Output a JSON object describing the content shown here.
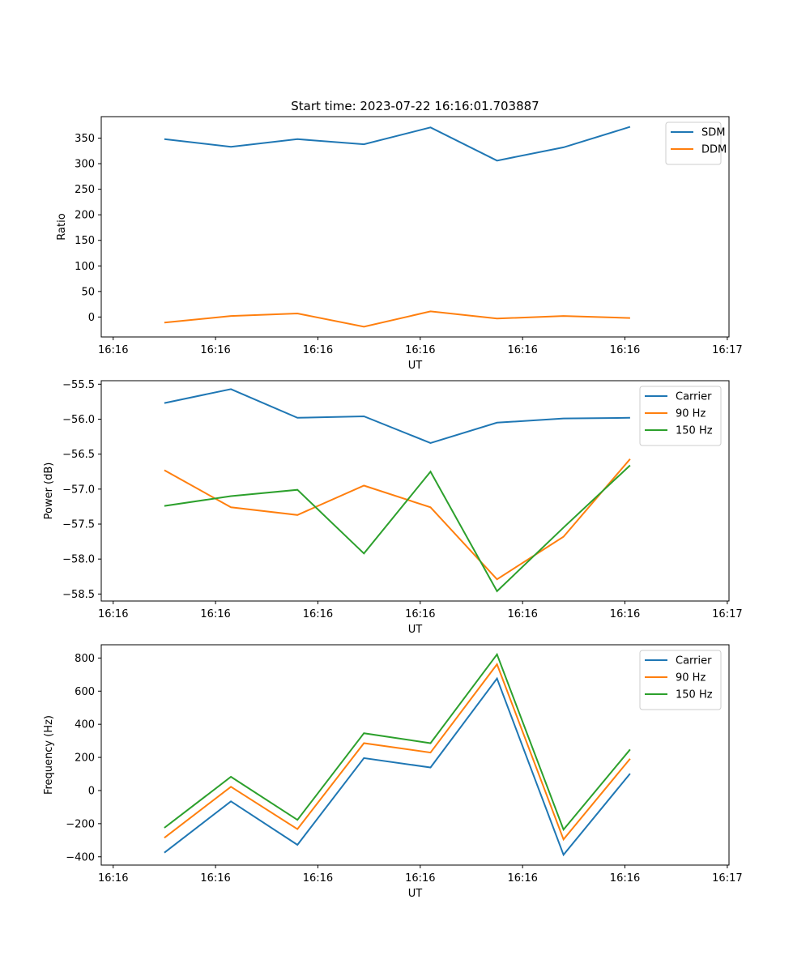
{
  "title": "Start time: 2023-07-22 16:16:01.703887",
  "chart_data": [
    {
      "type": "line",
      "title": "Start time: 2023-07-22 16:16:01.703887",
      "xlabel": "UT",
      "ylabel": "Ratio",
      "x_tick_labels": [
        "16:16",
        "16:16",
        "16:16",
        "16:16",
        "16:16",
        "16:16",
        "16:17"
      ],
      "x_tick_values": [
        0,
        6,
        12,
        18,
        24,
        30,
        36
      ],
      "xlim": [
        -0.7,
        36.1
      ],
      "x": [
        3,
        6.9,
        10.8,
        14.7,
        18.6,
        22.5,
        26.4,
        30.3
      ],
      "y_ticks": [
        0,
        50,
        100,
        150,
        200,
        250,
        300,
        350
      ],
      "ylim": [
        -39,
        392
      ],
      "legend": "top-right",
      "series": [
        {
          "name": "SDM",
          "color": "#1f77b4",
          "values": [
            348,
            333,
            348,
            338,
            371,
            306,
            332,
            372
          ]
        },
        {
          "name": "DDM",
          "color": "#ff7f0e",
          "values": [
            -11,
            2,
            7,
            -19,
            11,
            -3,
            2,
            -2
          ]
        }
      ]
    },
    {
      "type": "line",
      "xlabel": "UT",
      "ylabel": "Power (dB)",
      "x_tick_labels": [
        "16:16",
        "16:16",
        "16:16",
        "16:16",
        "16:16",
        "16:16",
        "16:17"
      ],
      "x_tick_values": [
        0,
        6,
        12,
        18,
        24,
        30,
        36
      ],
      "xlim": [
        -0.7,
        36.1
      ],
      "x": [
        3,
        6.9,
        10.8,
        14.7,
        18.6,
        22.5,
        26.4,
        30.3
      ],
      "y_ticks": [
        -58.5,
        -58.0,
        -57.5,
        -57.0,
        -56.5,
        -56.0,
        -55.5
      ],
      "y_tick_labels": [
        "−58.5",
        "−58.0",
        "−57.5",
        "−57.0",
        "−56.5",
        "−56.0",
        "−55.5"
      ],
      "ylim": [
        -58.6,
        -55.45
      ],
      "legend": "top-right",
      "series": [
        {
          "name": "Carrier",
          "color": "#1f77b4",
          "values": [
            -55.77,
            -55.57,
            -55.98,
            -55.96,
            -56.34,
            -56.05,
            -55.99,
            -55.98
          ]
        },
        {
          "name": "90 Hz",
          "color": "#ff7f0e",
          "values": [
            -56.73,
            -57.26,
            -57.37,
            -56.95,
            -57.26,
            -58.29,
            -57.68,
            -56.57
          ]
        },
        {
          "name": "150 Hz",
          "color": "#2ca02c",
          "values": [
            -57.24,
            -57.1,
            -57.01,
            -57.92,
            -56.75,
            -58.46,
            -57.55,
            -56.66
          ]
        }
      ]
    },
    {
      "type": "line",
      "xlabel": "UT",
      "ylabel": "Frequency (Hz)",
      "x_tick_labels": [
        "16:16",
        "16:16",
        "16:16",
        "16:16",
        "16:16",
        "16:16",
        "16:17"
      ],
      "x_tick_values": [
        0,
        6,
        12,
        18,
        24,
        30,
        36
      ],
      "xlim": [
        -0.7,
        36.1
      ],
      "x": [
        3,
        6.9,
        10.8,
        14.7,
        18.6,
        22.5,
        26.4,
        30.3
      ],
      "y_ticks": [
        -400,
        -200,
        0,
        200,
        400,
        600,
        800
      ],
      "y_tick_labels": [
        "−400",
        "−200",
        "0",
        "200",
        "400",
        "600",
        "800"
      ],
      "ylim": [
        -450,
        880
      ],
      "legend": "top-right",
      "series": [
        {
          "name": "Carrier",
          "color": "#1f77b4",
          "values": [
            -375,
            -65,
            -328,
            196,
            139,
            676,
            -388,
            102
          ]
        },
        {
          "name": "90 Hz",
          "color": "#ff7f0e",
          "values": [
            -285,
            23,
            -233,
            286,
            229,
            762,
            -295,
            192
          ]
        },
        {
          "name": "150 Hz",
          "color": "#2ca02c",
          "values": [
            -225,
            83,
            -177,
            346,
            286,
            822,
            -236,
            248
          ]
        }
      ]
    }
  ]
}
